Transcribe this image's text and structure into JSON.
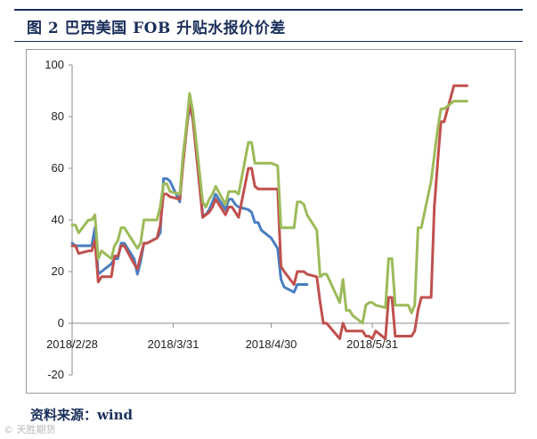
{
  "header": {
    "title": "图 2 巴西美国 FOB 升贴水报价价差"
  },
  "footer": {
    "source": "资料来源：wind",
    "watermark": "© 天胜期货"
  },
  "colors": {
    "blue": "#4a7ec0",
    "red": "#c0504d",
    "green": "#9bbb59",
    "accent": "#1a2f5a"
  },
  "chart_data": {
    "type": "line",
    "title": "",
    "xlabel": "",
    "ylabel": "",
    "ylim": [
      -20,
      100
    ],
    "yticks": [
      -20,
      0,
      20,
      40,
      60,
      80,
      100
    ],
    "xlim": [
      "2018-02-28",
      "2018-07-12"
    ],
    "xticks": [
      "2018/2/28",
      "2018/3/31",
      "2018/4/30",
      "2018/5/31"
    ],
    "grid": false,
    "series": [
      {
        "color": "blue",
        "points": [
          [
            "2018-02-28",
            31
          ],
          [
            "2018-03-01",
            30
          ],
          [
            "2018-03-02",
            30
          ],
          [
            "2018-03-05",
            30
          ],
          [
            "2018-03-06",
            30
          ],
          [
            "2018-03-07",
            37
          ],
          [
            "2018-03-08",
            19
          ],
          [
            "2018-03-09",
            20
          ],
          [
            "2018-03-12",
            23
          ],
          [
            "2018-03-13",
            25
          ],
          [
            "2018-03-14",
            25
          ],
          [
            "2018-03-15",
            31
          ],
          [
            "2018-03-16",
            31
          ],
          [
            "2018-03-19",
            25
          ],
          [
            "2018-03-20",
            19
          ],
          [
            "2018-03-21",
            24
          ],
          [
            "2018-03-22",
            31
          ],
          [
            "2018-03-23",
            31
          ],
          [
            "2018-03-26",
            33
          ],
          [
            "2018-03-27",
            35
          ],
          [
            "2018-03-28",
            56
          ],
          [
            "2018-03-29",
            56
          ],
          [
            "2018-03-30",
            55
          ],
          [
            "2018-04-02",
            47
          ],
          [
            "2018-04-03",
            65
          ],
          [
            "2018-04-04",
            75
          ],
          [
            "2018-04-05",
            84
          ],
          [
            "2018-04-06",
            79
          ],
          [
            "2018-04-09",
            42
          ],
          [
            "2018-04-10",
            42
          ],
          [
            "2018-04-11",
            44
          ],
          [
            "2018-04-12",
            47
          ],
          [
            "2018-04-13",
            50
          ],
          [
            "2018-04-16",
            44
          ],
          [
            "2018-04-17",
            48
          ],
          [
            "2018-04-18",
            48
          ],
          [
            "2018-04-19",
            46
          ],
          [
            "2018-04-20",
            45
          ],
          [
            "2018-04-23",
            44
          ],
          [
            "2018-04-24",
            43
          ],
          [
            "2018-04-25",
            39
          ],
          [
            "2018-04-26",
            39
          ],
          [
            "2018-04-27",
            36
          ],
          [
            "2018-04-30",
            33
          ],
          [
            "2018-05-02",
            29
          ],
          [
            "2018-05-03",
            17
          ],
          [
            "2018-05-04",
            14
          ],
          [
            "2018-05-07",
            12
          ],
          [
            "2018-05-08",
            15
          ],
          [
            "2018-05-09",
            15
          ],
          [
            "2018-05-10",
            15
          ],
          [
            "2018-05-11",
            15
          ]
        ]
      },
      {
        "color": "red",
        "points": [
          [
            "2018-02-28",
            30
          ],
          [
            "2018-03-01",
            30
          ],
          [
            "2018-03-02",
            27
          ],
          [
            "2018-03-05",
            28
          ],
          [
            "2018-03-06",
            28
          ],
          [
            "2018-03-07",
            32
          ],
          [
            "2018-03-08",
            16
          ],
          [
            "2018-03-09",
            18
          ],
          [
            "2018-03-12",
            18
          ],
          [
            "2018-03-13",
            26
          ],
          [
            "2018-03-14",
            26
          ],
          [
            "2018-03-15",
            30
          ],
          [
            "2018-03-16",
            30
          ],
          [
            "2018-03-19",
            23
          ],
          [
            "2018-03-20",
            21
          ],
          [
            "2018-03-21",
            26
          ],
          [
            "2018-03-22",
            31
          ],
          [
            "2018-03-23",
            31
          ],
          [
            "2018-03-26",
            33
          ],
          [
            "2018-03-27",
            38
          ],
          [
            "2018-03-28",
            50
          ],
          [
            "2018-03-29",
            50
          ],
          [
            "2018-03-30",
            49
          ],
          [
            "2018-04-02",
            48
          ],
          [
            "2018-04-03",
            62
          ],
          [
            "2018-04-04",
            74
          ],
          [
            "2018-04-05",
            86
          ],
          [
            "2018-04-06",
            79
          ],
          [
            "2018-04-09",
            41
          ],
          [
            "2018-04-10",
            42
          ],
          [
            "2018-04-11",
            43
          ],
          [
            "2018-04-12",
            45
          ],
          [
            "2018-04-13",
            48
          ],
          [
            "2018-04-16",
            42
          ],
          [
            "2018-04-17",
            45
          ],
          [
            "2018-04-18",
            45
          ],
          [
            "2018-04-19",
            43
          ],
          [
            "2018-04-20",
            41
          ],
          [
            "2018-04-23",
            60
          ],
          [
            "2018-04-24",
            60
          ],
          [
            "2018-04-25",
            53
          ],
          [
            "2018-04-26",
            52
          ],
          [
            "2018-04-27",
            52
          ],
          [
            "2018-04-30",
            52
          ],
          [
            "2018-05-02",
            52
          ],
          [
            "2018-05-03",
            22
          ],
          [
            "2018-05-04",
            20
          ],
          [
            "2018-05-07",
            15
          ],
          [
            "2018-05-08",
            20
          ],
          [
            "2018-05-09",
            20
          ],
          [
            "2018-05-10",
            20
          ],
          [
            "2018-05-11",
            19
          ],
          [
            "2018-05-14",
            18
          ],
          [
            "2018-05-15",
            8
          ],
          [
            "2018-05-16",
            0
          ],
          [
            "2018-05-17",
            0
          ],
          [
            "2018-05-21",
            -6
          ],
          [
            "2018-05-22",
            0
          ],
          [
            "2018-05-23",
            -3
          ],
          [
            "2018-05-24",
            -3
          ],
          [
            "2018-05-25",
            -3
          ],
          [
            "2018-05-28",
            -3
          ],
          [
            "2018-05-29",
            -5
          ],
          [
            "2018-05-30",
            -5
          ],
          [
            "2018-05-31",
            -6
          ],
          [
            "2018-06-01",
            -3
          ],
          [
            "2018-06-04",
            -6
          ],
          [
            "2018-06-05",
            10
          ],
          [
            "2018-06-06",
            10
          ],
          [
            "2018-06-07",
            -5
          ],
          [
            "2018-06-08",
            -5
          ],
          [
            "2018-06-11",
            -5
          ],
          [
            "2018-06-12",
            -5
          ],
          [
            "2018-06-13",
            -3
          ],
          [
            "2018-06-14",
            5
          ],
          [
            "2018-06-15",
            10
          ],
          [
            "2018-06-18",
            10
          ],
          [
            "2018-06-19",
            45
          ],
          [
            "2018-06-20",
            62
          ],
          [
            "2018-06-21",
            78
          ],
          [
            "2018-06-22",
            78
          ],
          [
            "2018-06-25",
            92
          ],
          [
            "2018-06-26",
            92
          ],
          [
            "2018-06-27",
            92
          ],
          [
            "2018-06-28",
            92
          ],
          [
            "2018-06-29",
            92
          ]
        ]
      },
      {
        "color": "green",
        "points": [
          [
            "2018-02-28",
            38
          ],
          [
            "2018-03-01",
            38
          ],
          [
            "2018-03-02",
            35
          ],
          [
            "2018-03-05",
            40
          ],
          [
            "2018-03-06",
            40
          ],
          [
            "2018-03-07",
            42
          ],
          [
            "2018-03-08",
            25
          ],
          [
            "2018-03-09",
            28
          ],
          [
            "2018-03-12",
            25
          ],
          [
            "2018-03-13",
            30
          ],
          [
            "2018-03-14",
            32
          ],
          [
            "2018-03-15",
            37
          ],
          [
            "2018-03-16",
            37
          ],
          [
            "2018-03-19",
            31
          ],
          [
            "2018-03-20",
            29
          ],
          [
            "2018-03-21",
            31
          ],
          [
            "2018-03-22",
            40
          ],
          [
            "2018-03-23",
            40
          ],
          [
            "2018-03-26",
            40
          ],
          [
            "2018-03-27",
            45
          ],
          [
            "2018-03-28",
            54
          ],
          [
            "2018-03-29",
            54
          ],
          [
            "2018-03-30",
            51
          ],
          [
            "2018-04-02",
            50
          ],
          [
            "2018-04-03",
            65
          ],
          [
            "2018-04-04",
            76
          ],
          [
            "2018-04-05",
            89
          ],
          [
            "2018-04-06",
            82
          ],
          [
            "2018-04-09",
            47
          ],
          [
            "2018-04-10",
            45
          ],
          [
            "2018-04-11",
            48
          ],
          [
            "2018-04-12",
            50
          ],
          [
            "2018-04-13",
            53
          ],
          [
            "2018-04-16",
            46
          ],
          [
            "2018-04-17",
            51
          ],
          [
            "2018-04-18",
            51
          ],
          [
            "2018-04-19",
            51
          ],
          [
            "2018-04-20",
            50
          ],
          [
            "2018-04-23",
            70
          ],
          [
            "2018-04-24",
            70
          ],
          [
            "2018-04-25",
            62
          ],
          [
            "2018-04-26",
            62
          ],
          [
            "2018-04-27",
            62
          ],
          [
            "2018-04-30",
            62
          ],
          [
            "2018-05-02",
            61
          ],
          [
            "2018-05-03",
            37
          ],
          [
            "2018-05-04",
            37
          ],
          [
            "2018-05-07",
            37
          ],
          [
            "2018-05-08",
            47
          ],
          [
            "2018-05-09",
            47
          ],
          [
            "2018-05-10",
            46
          ],
          [
            "2018-05-11",
            42
          ],
          [
            "2018-05-14",
            36
          ],
          [
            "2018-05-15",
            18
          ],
          [
            "2018-05-16",
            19
          ],
          [
            "2018-05-17",
            19
          ],
          [
            "2018-05-21",
            8
          ],
          [
            "2018-05-22",
            17
          ],
          [
            "2018-05-23",
            5
          ],
          [
            "2018-05-24",
            5
          ],
          [
            "2018-05-25",
            3
          ],
          [
            "2018-05-28",
            0
          ],
          [
            "2018-05-29",
            7
          ],
          [
            "2018-05-30",
            8
          ],
          [
            "2018-05-31",
            8
          ],
          [
            "2018-06-01",
            7
          ],
          [
            "2018-06-04",
            6
          ],
          [
            "2018-06-05",
            25
          ],
          [
            "2018-06-06",
            25
          ],
          [
            "2018-06-07",
            7
          ],
          [
            "2018-06-08",
            7
          ],
          [
            "2018-06-11",
            7
          ],
          [
            "2018-06-12",
            4
          ],
          [
            "2018-06-13",
            7
          ],
          [
            "2018-06-14",
            37
          ],
          [
            "2018-06-15",
            37
          ],
          [
            "2018-06-18",
            55
          ],
          [
            "2018-06-19",
            65
          ],
          [
            "2018-06-20",
            75
          ],
          [
            "2018-06-21",
            83
          ],
          [
            "2018-06-22",
            83
          ],
          [
            "2018-06-25",
            86
          ],
          [
            "2018-06-26",
            86
          ],
          [
            "2018-06-27",
            86
          ],
          [
            "2018-06-28",
            86
          ],
          [
            "2018-06-29",
            86
          ]
        ]
      }
    ]
  }
}
